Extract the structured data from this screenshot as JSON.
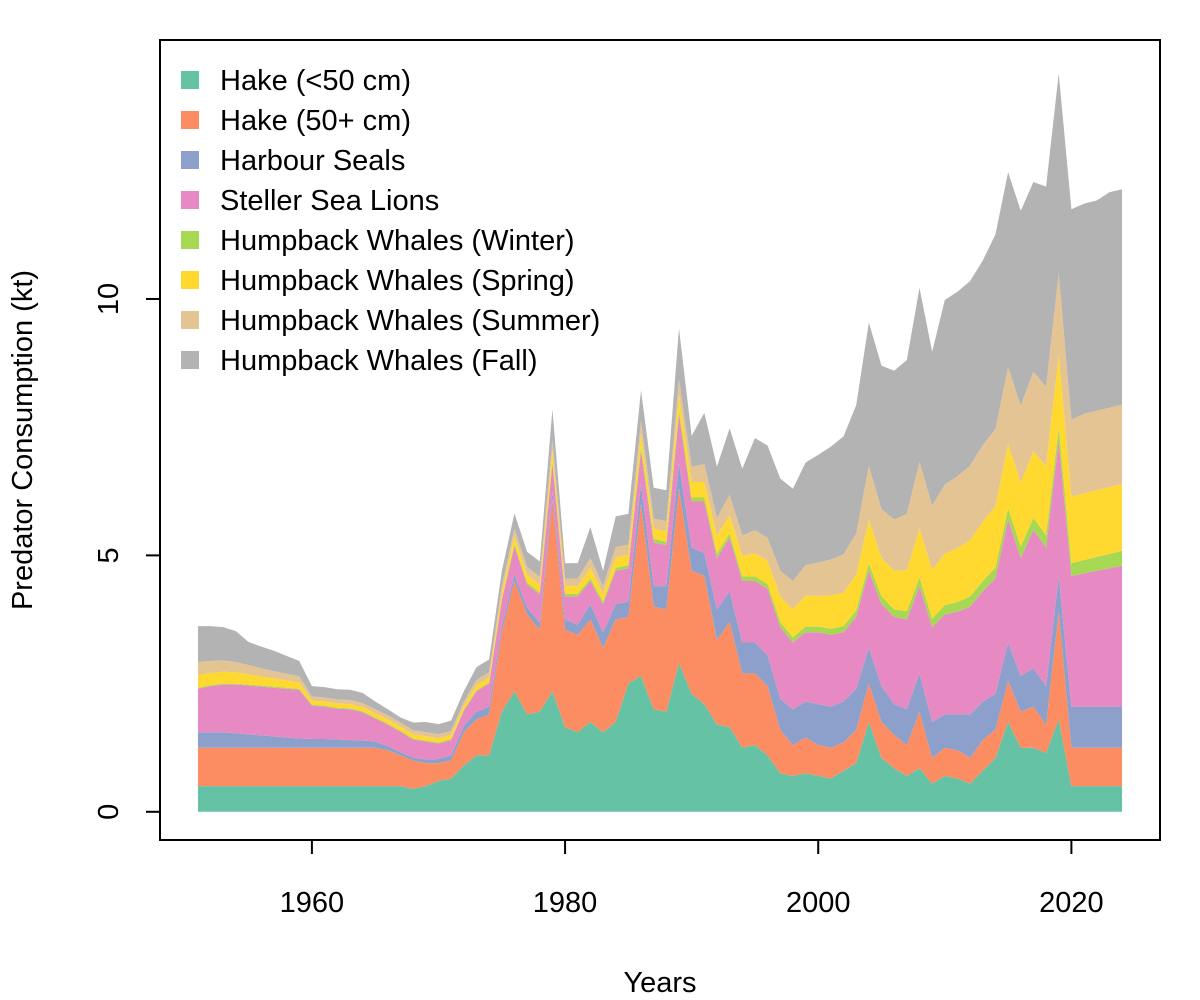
{
  "chart_data": {
    "type": "area",
    "stacked": true,
    "title": "",
    "xlabel": "Years",
    "ylabel": "Predator Consumption (kt)",
    "xlim": [
      1948,
      2027
    ],
    "ylim": [
      -0.55,
      15.05
    ],
    "xticks": [
      1960,
      1980,
      2000,
      2020
    ],
    "yticks": [
      0,
      5,
      10
    ],
    "legend_position": "top-left",
    "x": [
      1951,
      1952,
      1953,
      1954,
      1955,
      1956,
      1957,
      1958,
      1959,
      1960,
      1961,
      1962,
      1963,
      1964,
      1965,
      1966,
      1967,
      1968,
      1969,
      1970,
      1971,
      1972,
      1973,
      1974,
      1975,
      1976,
      1977,
      1978,
      1979,
      1980,
      1981,
      1982,
      1983,
      1984,
      1985,
      1986,
      1987,
      1988,
      1989,
      1990,
      1991,
      1992,
      1993,
      1994,
      1995,
      1996,
      1997,
      1998,
      1999,
      2000,
      2001,
      2002,
      2003,
      2004,
      2005,
      2006,
      2007,
      2008,
      2009,
      2010,
      2011,
      2012,
      2013,
      2014,
      2015,
      2016,
      2017,
      2018,
      2019,
      2020,
      2021,
      2022,
      2023,
      2024
    ],
    "series": [
      {
        "name": "Hake (<50 cm)",
        "color": "#66c2a5",
        "values": [
          0.5,
          0.5,
          0.5,
          0.5,
          0.5,
          0.5,
          0.5,
          0.5,
          0.5,
          0.5,
          0.5,
          0.5,
          0.5,
          0.5,
          0.5,
          0.5,
          0.5,
          0.45,
          0.5,
          0.6,
          0.65,
          0.9,
          1.1,
          1.1,
          1.95,
          2.35,
          1.9,
          1.95,
          2.35,
          1.65,
          1.55,
          1.75,
          1.55,
          1.75,
          2.5,
          2.65,
          2.0,
          1.95,
          2.9,
          2.3,
          2.1,
          1.7,
          1.65,
          1.25,
          1.3,
          1.1,
          0.75,
          0.7,
          0.75,
          0.7,
          0.65,
          0.8,
          0.95,
          1.75,
          1.05,
          0.85,
          0.7,
          0.85,
          0.55,
          0.7,
          0.65,
          0.55,
          0.8,
          1.05,
          1.75,
          1.25,
          1.25,
          1.15,
          1.8,
          0.5,
          0.5,
          0.5,
          0.5,
          0.5
        ]
      },
      {
        "name": "Hake (50+ cm)",
        "color": "#fc8d62",
        "values": [
          0.75,
          0.75,
          0.75,
          0.75,
          0.75,
          0.75,
          0.75,
          0.75,
          0.75,
          0.75,
          0.75,
          0.75,
          0.75,
          0.75,
          0.75,
          0.7,
          0.6,
          0.55,
          0.45,
          0.35,
          0.35,
          0.65,
          0.7,
          0.8,
          1.55,
          2.15,
          1.95,
          1.6,
          3.75,
          1.9,
          1.9,
          2.0,
          1.65,
          2.0,
          1.3,
          3.35,
          2.0,
          2.0,
          3.4,
          2.4,
          2.5,
          1.65,
          2.05,
          1.45,
          1.4,
          1.35,
          0.85,
          0.6,
          0.7,
          0.6,
          0.6,
          0.55,
          0.65,
          0.75,
          0.7,
          0.65,
          0.6,
          1.1,
          0.5,
          0.55,
          0.55,
          0.5,
          0.6,
          0.55,
          0.8,
          0.7,
          0.8,
          0.55,
          2.1,
          0.75,
          0.75,
          0.75,
          0.75,
          0.75
        ]
      },
      {
        "name": "Harbour Seals",
        "color": "#8da0cb",
        "values": [
          0.3,
          0.3,
          0.3,
          0.28,
          0.26,
          0.24,
          0.22,
          0.2,
          0.18,
          0.17,
          0.17,
          0.16,
          0.15,
          0.14,
          0.12,
          0.08,
          0.06,
          0.06,
          0.07,
          0.08,
          0.1,
          0.12,
          0.15,
          0.15,
          0.12,
          0.13,
          0.13,
          0.14,
          0.15,
          0.2,
          0.2,
          0.3,
          0.3,
          0.3,
          0.3,
          0.4,
          0.4,
          0.45,
          0.5,
          0.45,
          0.45,
          0.6,
          0.6,
          0.6,
          0.6,
          0.6,
          0.6,
          0.7,
          0.7,
          0.8,
          0.8,
          0.8,
          0.8,
          0.7,
          0.7,
          0.6,
          0.7,
          0.75,
          0.7,
          0.65,
          0.7,
          0.85,
          0.75,
          0.7,
          0.75,
          0.7,
          0.75,
          0.75,
          0.7,
          0.8,
          0.8,
          0.8,
          0.8,
          0.8
        ]
      },
      {
        "name": "Steller Sea Lions",
        "color": "#e78ac3",
        "values": [
          0.85,
          0.9,
          0.93,
          0.95,
          0.95,
          0.95,
          0.95,
          0.95,
          0.95,
          0.65,
          0.63,
          0.6,
          0.6,
          0.55,
          0.45,
          0.42,
          0.4,
          0.35,
          0.35,
          0.3,
          0.3,
          0.3,
          0.4,
          0.45,
          0.5,
          0.55,
          0.45,
          0.55,
          0.55,
          0.45,
          0.55,
          0.45,
          0.55,
          0.65,
          0.65,
          0.65,
          0.85,
          0.8,
          0.95,
          0.9,
          1.0,
          1.0,
          1.05,
          1.2,
          1.2,
          1.3,
          1.4,
          1.3,
          1.35,
          1.4,
          1.4,
          1.35,
          1.4,
          1.5,
          1.6,
          1.7,
          1.75,
          1.7,
          1.85,
          1.95,
          2.0,
          2.1,
          2.15,
          2.25,
          2.4,
          2.3,
          2.7,
          2.7,
          2.65,
          2.55,
          2.6,
          2.65,
          2.7,
          2.75
        ]
      },
      {
        "name": "Humpback Whales (Winter)",
        "color": "#a6d854",
        "values": [
          0.02,
          0.02,
          0.02,
          0.02,
          0.02,
          0.02,
          0.02,
          0.02,
          0.02,
          0.02,
          0.02,
          0.02,
          0.02,
          0.02,
          0.02,
          0.02,
          0.02,
          0.02,
          0.02,
          0.02,
          0.02,
          0.02,
          0.02,
          0.02,
          0.03,
          0.04,
          0.04,
          0.04,
          0.05,
          0.05,
          0.05,
          0.05,
          0.05,
          0.06,
          0.06,
          0.07,
          0.07,
          0.07,
          0.08,
          0.08,
          0.08,
          0.08,
          0.08,
          0.09,
          0.09,
          0.09,
          0.1,
          0.1,
          0.11,
          0.11,
          0.12,
          0.12,
          0.13,
          0.14,
          0.15,
          0.15,
          0.16,
          0.17,
          0.17,
          0.18,
          0.19,
          0.2,
          0.2,
          0.21,
          0.22,
          0.22,
          0.23,
          0.24,
          0.25,
          0.25,
          0.26,
          0.27,
          0.28,
          0.29
        ]
      },
      {
        "name": "Humpback Whales (Spring)",
        "color": "#ffd92f",
        "values": [
          0.25,
          0.24,
          0.23,
          0.22,
          0.2,
          0.18,
          0.16,
          0.14,
          0.12,
          0.08,
          0.08,
          0.08,
          0.08,
          0.08,
          0.08,
          0.08,
          0.08,
          0.08,
          0.08,
          0.08,
          0.08,
          0.08,
          0.1,
          0.1,
          0.12,
          0.15,
          0.15,
          0.15,
          0.2,
          0.15,
          0.15,
          0.2,
          0.15,
          0.2,
          0.2,
          0.25,
          0.2,
          0.2,
          0.3,
          0.3,
          0.3,
          0.35,
          0.35,
          0.4,
          0.45,
          0.45,
          0.5,
          0.55,
          0.6,
          0.6,
          0.65,
          0.65,
          0.7,
          0.85,
          0.75,
          0.75,
          0.8,
          0.95,
          0.95,
          1.0,
          1.05,
          1.1,
          1.15,
          1.2,
          1.25,
          1.25,
          1.3,
          1.35,
          1.4,
          1.3,
          1.3,
          1.3,
          1.3,
          1.3
        ]
      },
      {
        "name": "Humpback Whales (Summer)",
        "color": "#e5c494",
        "values": [
          0.25,
          0.23,
          0.22,
          0.2,
          0.18,
          0.16,
          0.14,
          0.13,
          0.12,
          0.08,
          0.08,
          0.08,
          0.08,
          0.08,
          0.08,
          0.08,
          0.08,
          0.08,
          0.08,
          0.08,
          0.08,
          0.08,
          0.1,
          0.1,
          0.12,
          0.15,
          0.15,
          0.15,
          0.2,
          0.15,
          0.15,
          0.2,
          0.15,
          0.2,
          0.2,
          0.25,
          0.2,
          0.2,
          0.3,
          0.3,
          0.35,
          0.35,
          0.4,
          0.4,
          0.45,
          0.45,
          0.5,
          0.55,
          0.6,
          0.65,
          0.7,
          0.75,
          0.8,
          1.05,
          0.95,
          1.0,
          1.1,
          1.3,
          1.25,
          1.35,
          1.4,
          1.45,
          1.5,
          1.5,
          1.5,
          1.5,
          1.55,
          1.55,
          1.6,
          1.5,
          1.55,
          1.55,
          1.55,
          1.55
        ]
      },
      {
        "name": "Humpback Whales (Fall)",
        "color": "#b3b3b3",
        "values": [
          0.7,
          0.68,
          0.65,
          0.6,
          0.45,
          0.42,
          0.4,
          0.35,
          0.3,
          0.2,
          0.2,
          0.2,
          0.2,
          0.2,
          0.15,
          0.12,
          0.1,
          0.15,
          0.2,
          0.2,
          0.2,
          0.2,
          0.25,
          0.25,
          0.3,
          0.3,
          0.3,
          0.3,
          0.6,
          0.3,
          0.3,
          0.6,
          0.3,
          0.6,
          0.6,
          0.6,
          0.6,
          0.6,
          1.0,
          0.6,
          1.0,
          1.0,
          1.3,
          1.3,
          1.8,
          1.8,
          1.8,
          1.8,
          2.0,
          2.1,
          2.2,
          2.3,
          2.5,
          2.8,
          2.8,
          2.9,
          3.0,
          3.4,
          3.0,
          3.6,
          3.6,
          3.6,
          3.6,
          3.8,
          3.8,
          3.8,
          3.7,
          3.9,
          3.9,
          4.1,
          4.1,
          4.1,
          4.2,
          4.2
        ]
      }
    ]
  }
}
